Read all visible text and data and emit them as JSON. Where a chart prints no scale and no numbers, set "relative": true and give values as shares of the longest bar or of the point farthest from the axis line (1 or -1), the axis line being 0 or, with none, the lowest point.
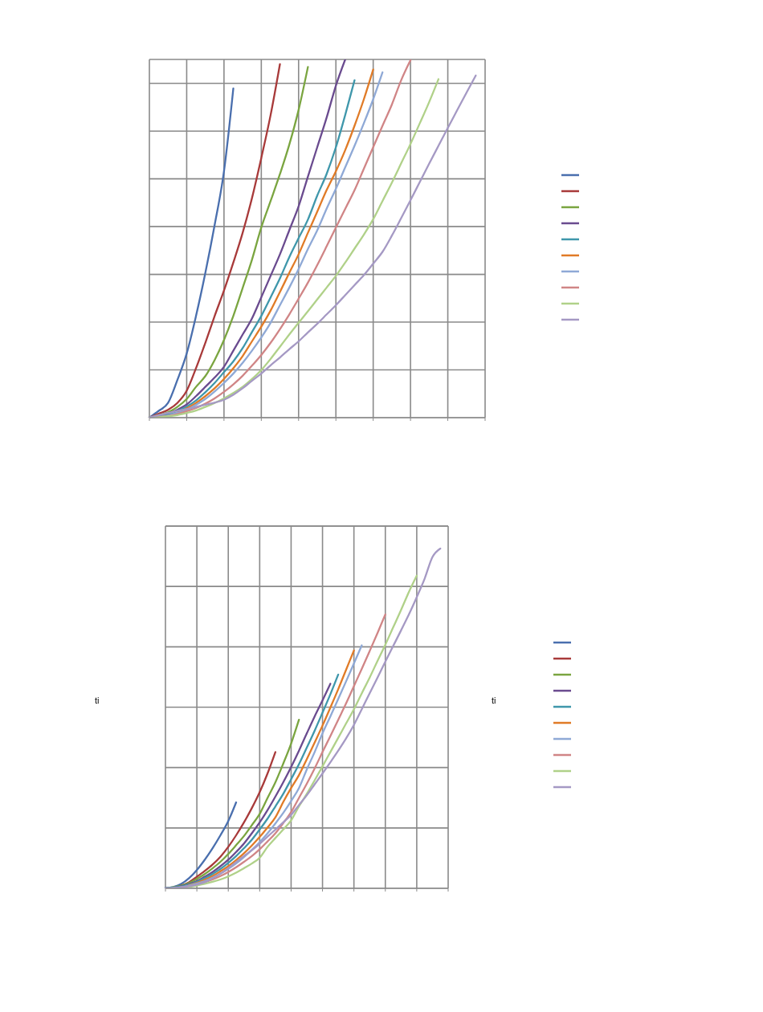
{
  "chart_data": [
    {
      "type": "line",
      "relative": true,
      "grid": true,
      "categories": [
        null,
        null,
        null,
        null,
        null,
        null,
        null,
        null,
        null,
        null,
        null,
        null,
        null,
        null,
        null,
        null,
        null,
        null,
        null,
        null,
        null,
        null,
        null,
        null,
        null,
        null,
        null,
        null,
        null,
        null,
        null,
        null,
        null,
        null,
        null,
        null,
        null
      ],
      "series": [
        {
          "color": "#4a6fae",
          "values": [
            0,
            0.019,
            0.041,
            0.105,
            0.179,
            0.284,
            0.404,
            0.538,
            0.688,
            0.919,
            null,
            null,
            null,
            null,
            null,
            null,
            null,
            null,
            null,
            null,
            null,
            null,
            null,
            null,
            null,
            null,
            null,
            null,
            null,
            null,
            null,
            null,
            null,
            null,
            null,
            null,
            null
          ]
        },
        {
          "color": "#a83a3a",
          "values": [
            0,
            0.011,
            0.022,
            0.041,
            0.075,
            0.138,
            0.209,
            0.284,
            0.355,
            0.433,
            0.516,
            0.613,
            0.725,
            0.845,
            0.987,
            null,
            null,
            null,
            null,
            null,
            null,
            null,
            null,
            null,
            null,
            null,
            null,
            null,
            null,
            null,
            null,
            null,
            null,
            null,
            null,
            null,
            null
          ]
        },
        {
          "color": "#7aa540",
          "values": [
            0,
            0.007,
            0.015,
            0.03,
            0.052,
            0.086,
            0.116,
            0.161,
            0.217,
            0.284,
            0.362,
            0.441,
            0.531,
            0.605,
            0.68,
            0.762,
            0.859,
            0.979,
            null,
            null,
            null,
            null,
            null,
            null,
            null,
            null,
            null,
            null,
            null,
            null,
            null,
            null,
            null,
            null,
            null,
            null,
            null
          ]
        },
        {
          "color": "#6a4b8f",
          "values": [
            0,
            0.004,
            0.011,
            0.022,
            0.037,
            0.06,
            0.086,
            0.112,
            0.142,
            0.187,
            0.232,
            0.277,
            0.336,
            0.396,
            0.456,
            0.523,
            0.59,
            0.673,
            0.755,
            0.837,
            0.927,
            1,
            null,
            null,
            null,
            null,
            null,
            null,
            null,
            null,
            null,
            null,
            null,
            null,
            null,
            null,
            null
          ]
        },
        {
          "color": "#3f97ab",
          "values": [
            0,
            0.004,
            0.009,
            0.019,
            0.031,
            0.048,
            0.071,
            0.097,
            0.127,
            0.157,
            0.194,
            0.239,
            0.284,
            0.336,
            0.389,
            0.448,
            0.501,
            0.553,
            0.62,
            0.68,
            0.755,
            0.845,
            0.942,
            null,
            null,
            null,
            null,
            null,
            null,
            null,
            null,
            null,
            null,
            null,
            null,
            null,
            null
          ]
        },
        {
          "color": "#e07b27",
          "values": [
            null,
            null,
            null,
            0.015,
            0.026,
            0.041,
            0.06,
            0.082,
            0.108,
            0.138,
            0.172,
            0.213,
            0.254,
            0.299,
            0.351,
            0.404,
            0.456,
            0.516,
            0.575,
            0.635,
            0.688,
            0.747,
            0.815,
            0.889,
            0.972,
            null,
            null,
            null,
            null,
            null,
            null,
            null,
            null,
            null,
            null,
            null,
            null
          ]
        },
        {
          "color": "#8fa9d6",
          "values": [
            0,
            0.002,
            0.006,
            0.013,
            0.022,
            0.036,
            0.052,
            0.073,
            0.097,
            0.123,
            0.153,
            0.187,
            0.224,
            0.265,
            0.314,
            0.363,
            0.415,
            0.471,
            0.523,
            0.583,
            0.639,
            0.699,
            0.759,
            0.822,
            0.889,
            0.964,
            null,
            null,
            null,
            null,
            null,
            null,
            null,
            null,
            null,
            null,
            null
          ]
        },
        {
          "color": "#d08586",
          "values": [
            0,
            0.002,
            0.005,
            0.01,
            0.018,
            0.027,
            0.039,
            0.054,
            0.072,
            0.093,
            0.117,
            0.145,
            0.175,
            0.209,
            0.247,
            0.288,
            0.332,
            0.377,
            0.426,
            0.478,
            0.531,
            0.583,
            0.635,
            0.695,
            0.755,
            0.815,
            0.874,
            0.942,
            0.998,
            null,
            null,
            null,
            null,
            null,
            null,
            null,
            null
          ]
        },
        {
          "color": "#b0d189",
          "values": [
            0,
            0.001,
            0.004,
            0.007,
            0.013,
            0.02,
            0.03,
            0.041,
            0.054,
            0.069,
            0.086,
            0.108,
            0.133,
            0.164,
            0.198,
            0.232,
            0.265,
            0.297,
            0.33,
            0.363,
            0.396,
            0.433,
            0.472,
            0.511,
            0.554,
            0.605,
            0.656,
            0.71,
            0.764,
            0.822,
            0.881,
            0.945,
            null,
            null,
            null,
            null,
            null
          ]
        },
        {
          "color": "#a599c4",
          "values": [
            0,
            0.007,
            0.013,
            0.019,
            0.024,
            0.03,
            0.036,
            0.042,
            0.05,
            0.064,
            0.082,
            0.103,
            0.123,
            0.146,
            0.168,
            0.191,
            0.213,
            0.238,
            0.262,
            0.288,
            0.314,
            0.342,
            0.37,
            0.398,
            0.43,
            0.463,
            0.508,
            0.557,
            0.607,
            0.658,
            0.709,
            0.759,
            0.809,
            0.858,
            0.907,
            0.955,
            null
          ]
        }
      ]
    },
    {
      "type": "line",
      "relative": true,
      "grid": true,
      "ylabel": "ti",
      "y2label": "ti",
      "categories": [
        null,
        null,
        null,
        null,
        null,
        null,
        null,
        null,
        null,
        null,
        null,
        null,
        null,
        null,
        null,
        null,
        null,
        null,
        null,
        null,
        null,
        null,
        null,
        null,
        null,
        null,
        null,
        null,
        null,
        null,
        null,
        null,
        null,
        null,
        null,
        null,
        null
      ],
      "series": [
        {
          "color": "#4a6fae",
          "values": [
            0,
            0.004,
            0.013,
            0.03,
            0.054,
            0.084,
            0.118,
            0.156,
            0.198,
            0.253,
            null,
            null,
            null,
            null,
            null,
            null,
            null,
            null,
            null,
            null,
            null,
            null,
            null,
            null,
            null,
            null,
            null,
            null,
            null,
            null,
            null,
            null,
            null,
            null,
            null,
            null,
            null
          ]
        },
        {
          "color": "#a83a3a",
          "values": [
            null,
            null,
            0.008,
            0.018,
            0.034,
            0.051,
            0.07,
            0.093,
            0.122,
            0.156,
            0.194,
            0.236,
            0.283,
            0.338,
            0.401,
            null,
            null,
            null,
            null,
            null,
            null,
            null,
            null,
            null,
            null,
            null,
            null,
            null,
            null,
            null,
            null,
            null,
            null,
            null,
            null,
            null,
            null
          ]
        },
        {
          "color": "#7aa540",
          "values": [
            0,
            0.003,
            0.008,
            0.016,
            0.028,
            0.042,
            0.059,
            0.078,
            0.101,
            0.127,
            0.154,
            0.186,
            0.219,
            0.266,
            0.312,
            0.367,
            0.426,
            0.496,
            null,
            null,
            null,
            null,
            null,
            null,
            null,
            null,
            null,
            null,
            null,
            null,
            null,
            null,
            null,
            null,
            null,
            null,
            null
          ]
        },
        {
          "color": "#6a4b8f",
          "values": [
            0,
            0.002,
            0.006,
            0.013,
            0.021,
            0.034,
            0.048,
            0.065,
            0.084,
            0.107,
            0.132,
            0.162,
            0.194,
            0.23,
            0.27,
            0.312,
            0.357,
            0.405,
            0.456,
            0.506,
            0.553,
            0.602,
            null,
            null,
            null,
            null,
            null,
            null,
            null,
            null,
            null,
            null,
            null,
            null,
            null,
            null,
            null
          ]
        },
        {
          "color": "#3f97ab",
          "values": [
            0,
            0.002,
            0.005,
            0.011,
            0.019,
            0.03,
            0.042,
            0.057,
            0.075,
            0.095,
            0.118,
            0.143,
            0.173,
            0.205,
            0.241,
            0.278,
            0.321,
            0.365,
            0.414,
            0.464,
            0.517,
            0.571,
            0.629,
            null,
            null,
            null,
            null,
            null,
            null,
            null,
            null,
            null,
            null,
            null,
            null,
            null,
            null
          ]
        },
        {
          "color": "#e07b27",
          "values": [
            null,
            null,
            null,
            0.009,
            0.016,
            0.025,
            0.036,
            0.05,
            0.065,
            0.083,
            0.103,
            0.126,
            0.151,
            0.179,
            0.209,
            0.254,
            0.295,
            0.333,
            0.38,
            0.429,
            0.479,
            0.532,
            0.586,
            0.643,
            0.7,
            null,
            null,
            null,
            null,
            null,
            null,
            null,
            null,
            null,
            null,
            null,
            null
          ]
        },
        {
          "color": "#8fa9d6",
          "values": [
            0,
            0.001,
            0.003,
            0.008,
            0.014,
            0.021,
            0.031,
            0.043,
            0.057,
            0.073,
            0.092,
            0.113,
            0.136,
            0.162,
            0.191,
            0.222,
            0.257,
            0.295,
            0.35,
            0.401,
            0.456,
            0.506,
            0.557,
            0.609,
            0.662,
            0.715,
            null,
            null,
            null,
            null,
            null,
            null,
            null,
            null,
            null,
            null,
            null
          ]
        },
        {
          "color": "#d08586",
          "values": [
            null,
            null,
            0.003,
            0.006,
            0.011,
            0.018,
            0.026,
            0.036,
            0.048,
            0.062,
            0.078,
            0.095,
            0.115,
            0.138,
            0.162,
            0.192,
            0.224,
            0.266,
            0.308,
            0.353,
            0.401,
            0.448,
            0.496,
            0.544,
            0.595,
            0.646,
            0.698,
            0.751,
            0.806,
            null,
            null,
            null,
            null,
            null,
            null,
            null,
            null
          ]
        },
        {
          "color": "#b0d189",
          "values": [
            null,
            null,
            null,
            0.004,
            0.008,
            0.013,
            0.019,
            0.026,
            0.035,
            0.046,
            0.059,
            0.073,
            0.09,
            0.122,
            0.148,
            0.173,
            0.2,
            0.241,
            0.278,
            0.318,
            0.359,
            0.401,
            0.443,
            0.485,
            0.527,
            0.574,
            0.62,
            0.669,
            0.717,
            0.768,
            0.819,
            0.872,
            0.92,
            null,
            null,
            null,
            null
          ]
        },
        {
          "color": "#a599c4",
          "values": [
            0,
            0.001,
            0.003,
            0.006,
            0.011,
            0.018,
            0.03,
            0.043,
            0.059,
            0.077,
            0.095,
            0.112,
            0.131,
            0.152,
            0.173,
            0.194,
            0.216,
            0.245,
            0.274,
            0.306,
            0.338,
            0.371,
            0.405,
            0.441,
            0.481,
            0.527,
            0.574,
            0.62,
            0.667,
            0.713,
            0.759,
            0.806,
            0.857,
            0.911,
            0.975,
            1,
            null
          ]
        }
      ]
    }
  ]
}
